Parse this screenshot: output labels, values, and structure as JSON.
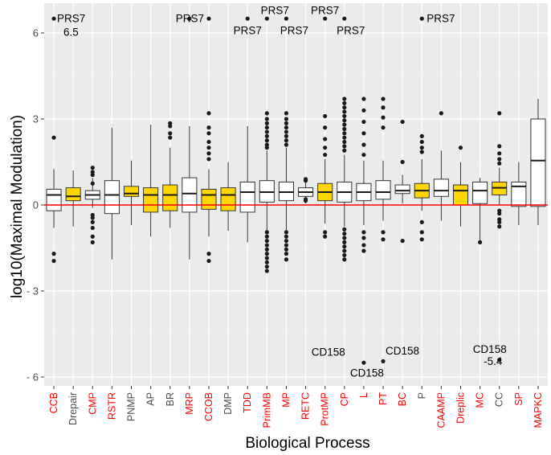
{
  "chart_data": {
    "type": "boxplot",
    "xlabel": "Biological Process",
    "ylabel": "log10(Maximal Modulation)",
    "ylim": [
      -6.2,
      6.8
    ],
    "yticks": [
      {
        "value": 6,
        "label": "6"
      },
      {
        "value": 3,
        "label": "3"
      },
      {
        "value": 0,
        "label": "0"
      },
      {
        "value": -3,
        "label": "- 3"
      },
      {
        "value": -6,
        "label": "- 6"
      }
    ],
    "reference_line": {
      "value": 0,
      "color": "#ff0000"
    },
    "colors": {
      "panel": "#ebebeb",
      "grid_major": "#ffffff",
      "grid_minor": "#f5f5f5",
      "white_box": "#ffffff",
      "yellow_box": "#ffd700",
      "label_red": "#ff0000",
      "label_grey": "#4d4d4d"
    },
    "categories": [
      {
        "name": "CCB",
        "label_color": "red",
        "fill": "white",
        "whisker_low": -0.8,
        "q1": -0.2,
        "median": 0.35,
        "q3": 0.55,
        "whisker_high": 1.25,
        "outliers": [
          2.35,
          -1.7,
          -1.95,
          6.5
        ]
      },
      {
        "name": "Drepair",
        "label_color": "grey",
        "fill": "yellow",
        "whisker_low": -0.75,
        "q1": 0.15,
        "median": 0.3,
        "q3": 0.6,
        "whisker_high": 1.2,
        "outliers": []
      },
      {
        "name": "CMP",
        "label_color": "red",
        "fill": "white",
        "whisker_low": -0.1,
        "q1": 0.2,
        "median": 0.35,
        "q3": 0.5,
        "whisker_high": 0.95,
        "outliers": [
          1.3,
          1.15,
          1.05,
          0.75,
          -0.35,
          -0.45,
          -0.6,
          -0.8,
          -1.1,
          -1.3
        ]
      },
      {
        "name": "RSTR",
        "label_color": "red",
        "fill": "white",
        "whisker_low": -1.9,
        "q1": -0.3,
        "median": 0.35,
        "q3": 0.85,
        "whisker_high": 2.7,
        "outliers": []
      },
      {
        "name": "PNMP",
        "label_color": "grey",
        "fill": "yellow",
        "whisker_low": -0.7,
        "q1": 0.3,
        "median": 0.4,
        "q3": 0.65,
        "whisker_high": 1.55,
        "outliers": []
      },
      {
        "name": "AP",
        "label_color": "grey",
        "fill": "yellow",
        "whisker_low": -1.1,
        "q1": -0.25,
        "median": 0.35,
        "q3": 0.6,
        "whisker_high": 2.8,
        "outliers": []
      },
      {
        "name": "BR",
        "label_color": "grey",
        "fill": "yellow",
        "whisker_low": -0.8,
        "q1": -0.2,
        "median": 0.35,
        "q3": 0.7,
        "whisker_high": 2.0,
        "outliers": [
          2.85,
          2.75,
          2.5,
          2.35
        ]
      },
      {
        "name": "MRP",
        "label_color": "red",
        "fill": "white",
        "whisker_low": -1.9,
        "q1": -0.25,
        "median": 0.4,
        "q3": 0.95,
        "whisker_high": 2.75,
        "outliers": [
          6.5
        ]
      },
      {
        "name": "CCOB",
        "label_color": "red",
        "fill": "yellow",
        "whisker_low": -1.1,
        "q1": -0.15,
        "median": 0.35,
        "q3": 0.55,
        "whisker_high": 1.25,
        "outliers": [
          3.2,
          2.7,
          2.5,
          2.2,
          2.0,
          1.8,
          1.6,
          -1.7,
          -1.95,
          6.5
        ]
      },
      {
        "name": "DMP",
        "label_color": "grey",
        "fill": "yellow",
        "whisker_low": -0.9,
        "q1": -0.2,
        "median": 0.35,
        "q3": 0.6,
        "whisker_high": 1.5,
        "outliers": []
      },
      {
        "name": "TDD",
        "label_color": "red",
        "fill": "white",
        "whisker_low": -1.3,
        "q1": -0.25,
        "median": 0.45,
        "q3": 0.8,
        "whisker_high": 2.75,
        "outliers": [
          6.5
        ]
      },
      {
        "name": "PrimMB",
        "label_color": "red",
        "fill": "white",
        "whisker_low": -0.9,
        "q1": 0.1,
        "median": 0.45,
        "q3": 0.85,
        "whisker_high": 1.9,
        "outliers": [
          3.2,
          3.0,
          2.85,
          2.7,
          2.55,
          2.4,
          2.25,
          2.1,
          2.0,
          -0.95,
          -1.1,
          -1.25,
          -1.4,
          -1.55,
          -1.7,
          -1.85,
          -2.0,
          -2.15,
          -2.3,
          6.5
        ]
      },
      {
        "name": "MP",
        "label_color": "red",
        "fill": "white",
        "whisker_low": -0.9,
        "q1": 0.15,
        "median": 0.45,
        "q3": 0.8,
        "whisker_high": 2.0,
        "outliers": [
          3.2,
          3.0,
          2.85,
          2.7,
          2.55,
          2.4,
          2.25,
          2.1,
          -0.95,
          -1.1,
          -1.25,
          -1.4,
          -1.55,
          -1.7,
          -1.9,
          6.5
        ]
      },
      {
        "name": "RETC",
        "label_color": "red",
        "fill": "white",
        "whisker_low": 0.05,
        "q1": 0.3,
        "median": 0.45,
        "q3": 0.6,
        "whisker_high": 0.8,
        "outliers": [
          0.9,
          0.85,
          0.2,
          0.15
        ]
      },
      {
        "name": "ProtMP",
        "label_color": "red",
        "fill": "yellow",
        "whisker_low": -0.65,
        "q1": 0.15,
        "median": 0.45,
        "q3": 0.75,
        "whisker_high": 1.6,
        "outliers": [
          3.1,
          2.7,
          2.3,
          2.0,
          1.75,
          -0.95,
          -1.1,
          6.5
        ]
      },
      {
        "name": "CP",
        "label_color": "red",
        "fill": "white",
        "whisker_low": -0.75,
        "q1": 0.1,
        "median": 0.45,
        "q3": 0.8,
        "whisker_high": 1.75,
        "outliers": [
          3.7,
          3.55,
          3.4,
          3.25,
          3.1,
          2.95,
          2.8,
          2.65,
          2.5,
          2.35,
          2.2,
          2.05,
          1.9,
          -0.85,
          -1.0,
          -1.15,
          -1.3,
          -1.45,
          -1.6,
          -1.75,
          -1.9,
          6.5
        ]
      },
      {
        "name": "L",
        "label_color": "red",
        "fill": "white",
        "whisker_low": -0.7,
        "q1": 0.15,
        "median": 0.45,
        "q3": 0.75,
        "whisker_high": 1.55,
        "outliers": [
          3.7,
          3.3,
          2.9,
          2.5,
          2.1,
          1.75,
          -0.95,
          -1.15,
          -1.4,
          -1.6,
          -5.5
        ]
      },
      {
        "name": "PT",
        "label_color": "red",
        "fill": "white",
        "whisker_low": -0.55,
        "q1": 0.2,
        "median": 0.45,
        "q3": 0.85,
        "whisker_high": 1.55,
        "outliers": [
          3.7,
          3.4,
          3.05,
          2.7,
          -0.95,
          -1.2,
          -5.45
        ]
      },
      {
        "name": "BC",
        "label_color": "red",
        "fill": "white",
        "whisker_low": 0.05,
        "q1": 0.4,
        "median": 0.5,
        "q3": 0.7,
        "whisker_high": 1.05,
        "outliers": [
          2.9,
          1.5,
          -1.25
        ]
      },
      {
        "name": "P",
        "label_color": "grey",
        "fill": "yellow",
        "whisker_low": -0.2,
        "q1": 0.25,
        "median": 0.5,
        "q3": 0.75,
        "whisker_high": 1.6,
        "outliers": [
          2.4,
          2.2,
          2.0,
          1.85,
          -0.6,
          -0.95,
          -1.2,
          6.5
        ]
      },
      {
        "name": "CAAMP",
        "label_color": "red",
        "fill": "white",
        "whisker_low": -0.55,
        "q1": 0.3,
        "median": 0.5,
        "q3": 0.9,
        "whisker_high": 1.9,
        "outliers": [
          3.2
        ]
      },
      {
        "name": "Dreplic",
        "label_color": "red",
        "fill": "yellow",
        "whisker_low": -0.75,
        "q1": 0.0,
        "median": 0.5,
        "q3": 0.7,
        "whisker_high": 1.5,
        "outliers": [
          2.0
        ]
      },
      {
        "name": "MC",
        "label_color": "red",
        "fill": "white",
        "whisker_low": -1.3,
        "q1": 0.05,
        "median": 0.5,
        "q3": 0.8,
        "whisker_high": 0.95,
        "outliers": [
          -1.3
        ]
      },
      {
        "name": "CC",
        "label_color": "grey",
        "fill": "yellow",
        "whisker_low": 0.0,
        "q1": 0.35,
        "median": 0.6,
        "q3": 0.8,
        "whisker_high": 1.3,
        "outliers": [
          3.2,
          2.05,
          1.8,
          1.6,
          1.45,
          -0.2,
          -0.3,
          -0.5,
          -0.6,
          -0.75,
          -5.4
        ]
      },
      {
        "name": "SP",
        "label_color": "red",
        "fill": "white",
        "whisker_low": -0.7,
        "q1": -0.05,
        "median": 0.65,
        "q3": 0.8,
        "whisker_high": 1.5,
        "outliers": []
      },
      {
        "name": "MAPKC",
        "label_color": "red",
        "fill": "white",
        "whisker_low": -0.7,
        "q1": -0.05,
        "median": 1.55,
        "q3": 3.0,
        "whisker_high": 3.7,
        "outliers": []
      }
    ],
    "annotations": [
      {
        "text": "PRS7",
        "category": "CCB",
        "y": 6.5,
        "dx": 4,
        "anchor": "start"
      },
      {
        "text": "6.5",
        "category": "CCB",
        "y": 6.5,
        "dx": 12,
        "dy": 17,
        "anchor": "start"
      },
      {
        "text": "PRS7",
        "category": "CCOB",
        "y": 6.5,
        "dx": -6,
        "anchor": "end"
      },
      {
        "text": "PRS7",
        "category": "TDD",
        "y": 6.5,
        "dx": 0,
        "dy": 15,
        "anchor": "middle"
      },
      {
        "text": "PRS7",
        "category": "PrimMB",
        "y": 6.5,
        "dx": 10,
        "dy": -10,
        "anchor": "middle"
      },
      {
        "text": "PRS7",
        "category": "MP",
        "y": 6.5,
        "dx": 10,
        "dy": 15,
        "anchor": "middle"
      },
      {
        "text": "PRS7",
        "category": "ProtMP",
        "y": 6.5,
        "dx": 0,
        "dy": -10,
        "anchor": "middle"
      },
      {
        "text": "PRS7",
        "category": "CP",
        "y": 6.5,
        "dx": 8,
        "dy": 15,
        "anchor": "middle"
      },
      {
        "text": "PRS7",
        "category": "P",
        "y": 6.5,
        "dx": 6,
        "anchor": "start"
      },
      {
        "text": "CD158",
        "category": "CP",
        "y": -5.5,
        "dx": -20,
        "dy": -13,
        "anchor": "middle"
      },
      {
        "text": "CD158",
        "category": "L",
        "y": -5.5,
        "dx": 4,
        "dy": 13,
        "anchor": "middle"
      },
      {
        "text": "CD158",
        "category": "PT",
        "y": -5.45,
        "dx": 3,
        "dy": -13,
        "anchor": "start"
      },
      {
        "text": "CD158",
        "category": "CC",
        "y": -5.4,
        "dx": -12,
        "dy": -13,
        "anchor": "middle"
      },
      {
        "text": "-5.4",
        "category": "CC",
        "y": -5.4,
        "dx": -8,
        "dy": 2,
        "anchor": "middle"
      }
    ]
  }
}
